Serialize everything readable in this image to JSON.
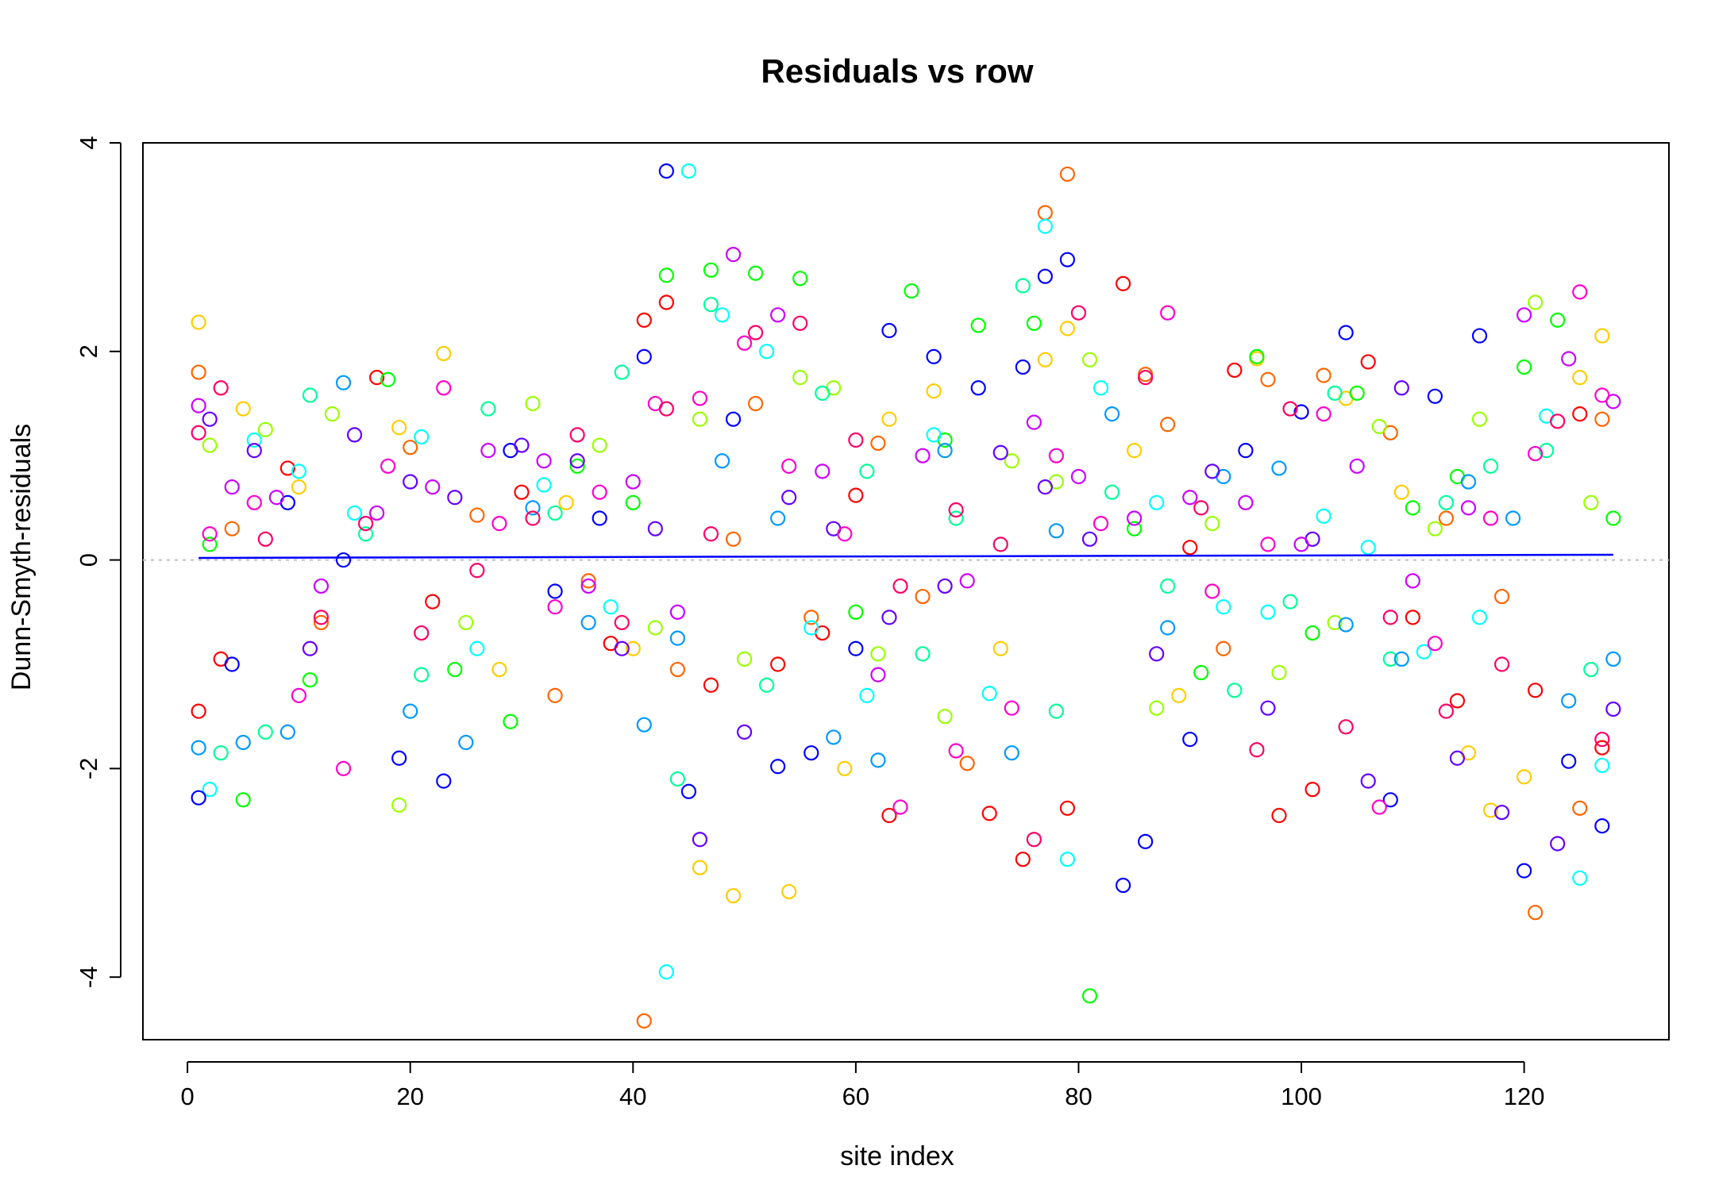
{
  "chart_data": {
    "type": "scatter",
    "title": "Residuals vs row",
    "xlabel": "site index",
    "ylabel": "Dunn-Smyth-residuals",
    "xlim": [
      -4,
      133
    ],
    "ylim": [
      -4.6,
      4.0
    ],
    "x_ticks": [
      0,
      20,
      40,
      60,
      80,
      100,
      120
    ],
    "y_ticks": [
      -4,
      -2,
      0,
      2,
      4
    ],
    "x_tick_labels": [
      "0",
      "20",
      "40",
      "60",
      "80",
      "100",
      "120"
    ],
    "y_tick_labels": [
      "-4",
      "-2",
      "0",
      "2",
      "4"
    ],
    "reference_line": {
      "y": 0,
      "style": "dotted",
      "color": "#bdbdbd"
    },
    "smooth_line": {
      "color": "#0000ff",
      "x": [
        1,
        128
      ],
      "y": [
        0.02,
        0.05
      ]
    },
    "grid": false,
    "legend": "none",
    "n_sites": 128,
    "series": [
      {
        "color": "#ff0000",
        "x": [
          1,
          3,
          9,
          17,
          22,
          30,
          38,
          41,
          43,
          47,
          53,
          57,
          60,
          63,
          72,
          75,
          79,
          84,
          90,
          94,
          98,
          101,
          106,
          110,
          114,
          121,
          125,
          127
        ],
        "y": [
          -1.45,
          -0.95,
          0.88,
          1.75,
          -0.4,
          0.65,
          -0.8,
          2.3,
          2.47,
          -1.2,
          -1.0,
          -0.7,
          0.62,
          -2.45,
          -2.43,
          -2.87,
          -2.38,
          2.65,
          0.12,
          1.82,
          -2.45,
          -2.2,
          1.9,
          -0.55,
          -1.35,
          -1.25,
          1.4,
          -1.8
        ]
      },
      {
        "color": "#ff6600",
        "x": [
          1,
          4,
          12,
          20,
          26,
          33,
          36,
          41,
          44,
          49,
          51,
          56,
          62,
          66,
          70,
          77,
          79,
          86,
          88,
          93,
          97,
          102,
          108,
          113,
          118,
          121,
          125,
          127
        ],
        "y": [
          1.8,
          0.3,
          -0.6,
          1.08,
          0.43,
          -1.3,
          -0.2,
          -4.42,
          -1.05,
          0.2,
          1.5,
          -0.55,
          1.12,
          -0.35,
          -1.95,
          3.33,
          3.7,
          1.78,
          1.3,
          -0.85,
          1.73,
          1.77,
          1.22,
          0.4,
          -0.35,
          -3.38,
          -2.38,
          1.35
        ]
      },
      {
        "color": "#ffcc00",
        "x": [
          1,
          5,
          10,
          19,
          23,
          28,
          34,
          40,
          46,
          49,
          54,
          59,
          63,
          67,
          73,
          77,
          79,
          85,
          89,
          96,
          100,
          104,
          109,
          115,
          117,
          120,
          125,
          127
        ],
        "y": [
          2.28,
          1.45,
          0.7,
          1.27,
          1.98,
          -1.05,
          0.55,
          -0.85,
          -2.95,
          -3.22,
          -3.18,
          -2.0,
          1.35,
          1.62,
          -0.85,
          1.92,
          2.22,
          1.05,
          -1.3,
          1.93,
          1.42,
          1.55,
          0.65,
          -1.85,
          -2.4,
          -2.08,
          1.75,
          2.15
        ]
      },
      {
        "color": "#99ff00",
        "x": [
          2,
          7,
          13,
          19,
          25,
          31,
          37,
          42,
          46,
          50,
          55,
          58,
          62,
          68,
          74,
          78,
          81,
          87,
          92,
          98,
          103,
          107,
          112,
          116,
          121,
          126
        ],
        "y": [
          1.1,
          1.25,
          1.4,
          -2.35,
          -0.6,
          1.5,
          1.1,
          -0.65,
          1.35,
          -0.95,
          1.75,
          1.65,
          -0.9,
          -1.5,
          0.95,
          0.75,
          1.92,
          -1.42,
          0.35,
          -1.08,
          -0.6,
          1.28,
          0.3,
          1.35,
          2.47,
          0.55
        ]
      },
      {
        "color": "#00ff00",
        "x": [
          2,
          5,
          11,
          18,
          24,
          29,
          35,
          40,
          43,
          47,
          51,
          55,
          60,
          65,
          68,
          71,
          76,
          81,
          85,
          91,
          96,
          101,
          105,
          110,
          114,
          120,
          123,
          128
        ],
        "y": [
          0.15,
          -2.3,
          -1.15,
          1.73,
          -1.05,
          -1.55,
          0.9,
          0.55,
          2.73,
          2.78,
          2.75,
          2.7,
          -0.5,
          2.58,
          1.15,
          2.25,
          2.27,
          -4.18,
          0.3,
          -1.08,
          1.95,
          -0.7,
          1.6,
          0.5,
          0.8,
          1.85,
          2.3,
          0.4
        ]
      },
      {
        "color": "#00ff99",
        "x": [
          3,
          7,
          11,
          16,
          21,
          27,
          33,
          39,
          44,
          47,
          52,
          57,
          61,
          66,
          69,
          75,
          78,
          83,
          88,
          94,
          99,
          103,
          108,
          113,
          117,
          122,
          126
        ],
        "y": [
          -1.85,
          -1.65,
          1.58,
          0.25,
          -1.1,
          1.45,
          0.45,
          1.8,
          -2.1,
          2.45,
          -1.2,
          1.6,
          0.85,
          -0.9,
          0.4,
          2.63,
          -1.45,
          0.65,
          -0.25,
          -1.25,
          -0.4,
          1.6,
          -0.95,
          0.55,
          0.9,
          1.05,
          -1.05
        ]
      },
      {
        "color": "#00ffff",
        "x": [
          2,
          6,
          10,
          15,
          21,
          26,
          32,
          38,
          43,
          45,
          48,
          52,
          56,
          61,
          67,
          72,
          77,
          79,
          82,
          87,
          93,
          97,
          102,
          106,
          111,
          116,
          122,
          125,
          127
        ],
        "y": [
          -2.2,
          1.15,
          0.85,
          0.45,
          1.18,
          -0.85,
          0.72,
          -0.45,
          -3.95,
          3.73,
          2.35,
          2.0,
          -0.65,
          -1.3,
          1.2,
          -1.28,
          3.2,
          -2.87,
          1.65,
          0.55,
          -0.45,
          -0.5,
          0.42,
          0.12,
          -0.88,
          -0.55,
          1.38,
          -3.05,
          -1.97
        ]
      },
      {
        "color": "#0099ff",
        "x": [
          1,
          5,
          9,
          14,
          20,
          25,
          31,
          36,
          41,
          44,
          48,
          53,
          58,
          62,
          68,
          74,
          78,
          83,
          88,
          93,
          98,
          104,
          109,
          115,
          119,
          124,
          128
        ],
        "y": [
          -1.8,
          -1.75,
          -1.65,
          1.7,
          -1.45,
          -1.75,
          0.5,
          -0.6,
          -1.58,
          -0.75,
          0.95,
          0.4,
          -1.7,
          -1.92,
          1.05,
          -1.85,
          0.28,
          1.4,
          -0.65,
          0.8,
          0.88,
          -0.62,
          -0.95,
          0.75,
          0.4,
          -1.35,
          -0.95
        ]
      },
      {
        "color": "#0000ff",
        "x": [
          1,
          4,
          9,
          14,
          19,
          23,
          29,
          33,
          37,
          41,
          43,
          45,
          49,
          53,
          56,
          60,
          63,
          67,
          71,
          75,
          77,
          79,
          84,
          86,
          90,
          95,
          100,
          104,
          108,
          112,
          116,
          120,
          124,
          127
        ],
        "y": [
          -2.28,
          -1.0,
          0.55,
          0.0,
          -1.9,
          -2.12,
          1.05,
          -0.3,
          0.4,
          1.95,
          3.73,
          -2.22,
          1.35,
          -1.98,
          -1.85,
          -0.85,
          2.2,
          1.95,
          1.65,
          1.85,
          2.72,
          2.88,
          -3.12,
          -2.7,
          -1.72,
          1.05,
          1.42,
          2.18,
          -2.3,
          1.57,
          2.15,
          -2.98,
          -1.93,
          -2.55
        ]
      },
      {
        "color": "#6600ff",
        "x": [
          2,
          6,
          11,
          15,
          20,
          24,
          30,
          35,
          39,
          42,
          46,
          50,
          54,
          58,
          63,
          68,
          73,
          77,
          81,
          87,
          92,
          97,
          101,
          106,
          109,
          114,
          118,
          123,
          128
        ],
        "y": [
          1.35,
          1.05,
          -0.85,
          1.2,
          0.75,
          0.6,
          1.1,
          0.95,
          -0.85,
          0.3,
          -2.68,
          -1.65,
          0.6,
          0.3,
          -0.55,
          -0.25,
          1.03,
          0.7,
          0.2,
          -0.9,
          0.85,
          -1.42,
          0.2,
          -2.12,
          1.65,
          -1.9,
          -2.42,
          -2.72,
          -1.43
        ]
      },
      {
        "color": "#cc00ff",
        "x": [
          1,
          4,
          8,
          12,
          17,
          22,
          27,
          32,
          36,
          40,
          44,
          49,
          53,
          57,
          62,
          66,
          70,
          76,
          80,
          85,
          90,
          95,
          100,
          105,
          110,
          115,
          120,
          124,
          128
        ],
        "y": [
          1.48,
          0.7,
          0.6,
          -0.25,
          0.45,
          0.7,
          1.05,
          0.95,
          -0.25,
          0.75,
          -0.5,
          2.93,
          2.35,
          0.85,
          -1.1,
          1.0,
          -0.2,
          1.32,
          0.8,
          0.4,
          0.6,
          0.55,
          0.15,
          0.9,
          -0.2,
          0.5,
          2.35,
          1.93,
          1.52
        ]
      },
      {
        "color": "#ff00cc",
        "x": [
          2,
          6,
          10,
          14,
          18,
          23,
          28,
          33,
          37,
          42,
          46,
          50,
          54,
          59,
          64,
          69,
          74,
          78,
          82,
          88,
          92,
          97,
          102,
          107,
          112,
          117,
          121,
          125,
          127
        ],
        "y": [
          0.25,
          0.55,
          -1.3,
          -2.0,
          0.9,
          1.65,
          0.35,
          -0.45,
          0.65,
          1.5,
          1.55,
          2.08,
          0.9,
          0.25,
          -2.37,
          -1.83,
          -1.42,
          1.0,
          0.35,
          2.37,
          -0.3,
          0.15,
          1.4,
          -2.37,
          -0.8,
          0.4,
          1.02,
          2.57,
          1.58
        ]
      },
      {
        "color": "#ff0066",
        "x": [
          1,
          3,
          7,
          12,
          16,
          21,
          26,
          31,
          35,
          39,
          43,
          47,
          51,
          55,
          60,
          64,
          69,
          73,
          76,
          80,
          86,
          91,
          96,
          99,
          104,
          108,
          113,
          118,
          123,
          127
        ],
        "y": [
          1.22,
          1.65,
          0.2,
          -0.55,
          0.35,
          -0.7,
          -0.1,
          0.4,
          1.2,
          -0.6,
          1.45,
          0.25,
          2.18,
          2.27,
          1.15,
          -0.25,
          0.48,
          0.15,
          -2.68,
          2.37,
          1.75,
          0.5,
          -1.82,
          1.45,
          -1.6,
          -0.55,
          -1.45,
          -1.0,
          1.33,
          -1.72
        ]
      }
    ]
  }
}
